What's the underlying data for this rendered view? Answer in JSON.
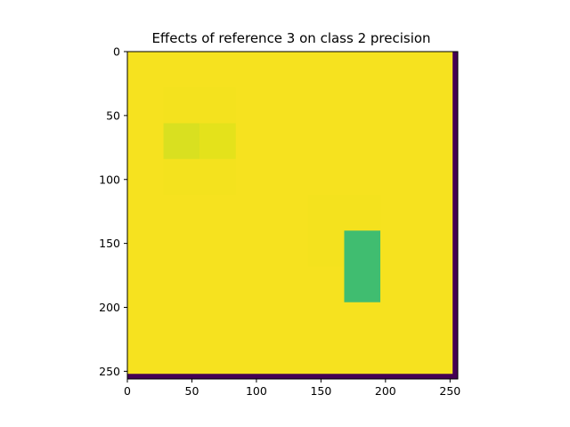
{
  "chart_data": {
    "type": "heatmap",
    "title": "Effects of reference 3 on class 2 precision",
    "xlabel": "",
    "ylabel": "",
    "x_range": [
      0,
      256
    ],
    "y_range": [
      0,
      256
    ],
    "y_inverted": true,
    "grid": false,
    "colormap": "viridis",
    "x_ticks": [
      0,
      50,
      100,
      150,
      200,
      250
    ],
    "y_ticks": [
      0,
      50,
      100,
      150,
      200,
      250
    ],
    "background_color": "#f6e21f",
    "regions": [
      {
        "x": [
          0,
          256
        ],
        "y": [
          0,
          256
        ],
        "color": "#f6e21f"
      },
      {
        "x": [
          28,
          84
        ],
        "y": [
          28,
          112
        ],
        "color": "#f4e21e"
      },
      {
        "x": [
          28,
          56
        ],
        "y": [
          56,
          84
        ],
        "color": "#d9e020"
      },
      {
        "x": [
          56,
          84
        ],
        "y": [
          56,
          84
        ],
        "color": "#e4e21b"
      },
      {
        "x": [
          140,
          196
        ],
        "y": [
          112,
          168
        ],
        "color": "#f4e21e"
      },
      {
        "x": [
          168,
          196
        ],
        "y": [
          140,
          196
        ],
        "color": "#40bd70"
      },
      {
        "x": [
          252,
          256
        ],
        "y": [
          0,
          256
        ],
        "color": "#440154"
      },
      {
        "x": [
          0,
          256
        ],
        "y": [
          252,
          256
        ],
        "color": "#440154"
      }
    ]
  }
}
